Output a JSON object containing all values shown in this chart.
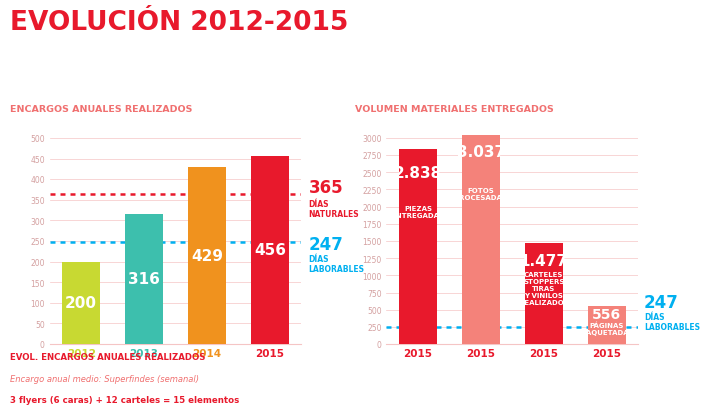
{
  "title": "EVOLUCIÓN 2012-2015",
  "title_color": "#e8192c",
  "bg_color": "#ffffff",
  "left_subtitle": "ENCARGOS ANUALES REALIZADOS",
  "right_subtitle": "VOLUMEN MATERIALES ENTREGADOS",
  "subtitle_color": "#f07070",
  "left_bars": {
    "values": [
      200,
      316,
      429,
      456
    ],
    "labels": [
      "2012",
      "2013",
      "2014",
      "2015"
    ],
    "colors": [
      "#c8d932",
      "#3dbfad",
      "#f0921e",
      "#e8192c"
    ],
    "label_colors": [
      "#c8d932",
      "#3dbfad",
      "#f0921e",
      "#e8192c"
    ],
    "ylim": [
      0,
      550
    ],
    "yticks": [
      0,
      50,
      100,
      150,
      200,
      250,
      300,
      350,
      400,
      450,
      500
    ],
    "hline1_val": 365,
    "hline1_num": "365",
    "hline1_sub": "DÍAS\nNATURALES",
    "hline1_color": "#e8192c",
    "hline2_val": 247,
    "hline2_num": "247",
    "hline2_sub": "DÍAS\nLABORABLES",
    "hline2_color": "#00b0f0"
  },
  "right_bars": {
    "values": [
      2838,
      3037,
      1477,
      556
    ],
    "labels": [
      "2015",
      "2015",
      "2015",
      "2015"
    ],
    "colors": [
      "#e8192c",
      "#f4827a",
      "#e8192c",
      "#f4827a"
    ],
    "annot_nums": [
      "2.838",
      "3.037",
      "1.477",
      "556"
    ],
    "annot_subs": [
      "PIEZAS\nENTREGADAS",
      "FOTOS\nPROCESADAS",
      "CARTELES\nSTOPPERS\nTIRAS\nY VINILOS\nREALIZADOS",
      "PÁGINAS\nMAQUETADAS"
    ],
    "ylim": [
      0,
      3300
    ],
    "yticks": [
      0,
      250,
      500,
      750,
      1000,
      1250,
      1500,
      1750,
      2000,
      2250,
      2500,
      2750,
      3000
    ],
    "hline_val": 247,
    "hline_num": "247",
    "hline_sub": "DÍAS\nLABORABLES",
    "hline_color": "#00b0f0"
  },
  "footer_line1": "EVOL. ENCARGOS ANUALES REALIZADOS",
  "footer_line2": "Encargo anual medio: Superfindes (semanal)",
  "footer_line3": "3 flyers (6 caras) + 12 carteles = 15 elementos",
  "grid_color": "#f5c5c5"
}
